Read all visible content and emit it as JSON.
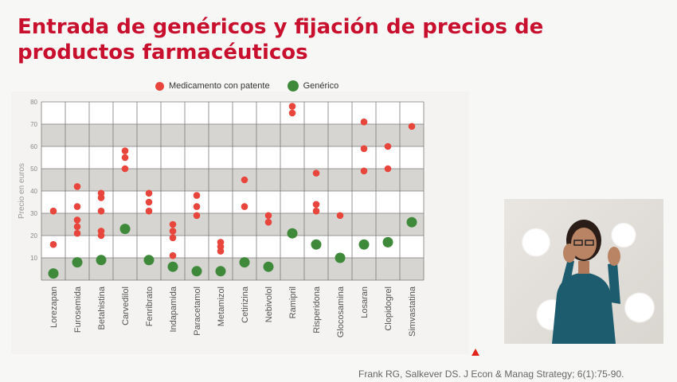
{
  "title": "Entrada de genéricos y fijación de precios de productos farmacéuticos",
  "citation": "Frank RG, Salkever DS. J Econ & Manag Strategy; 6(1):75-90.",
  "colors": {
    "brand": "#c8102e",
    "patent": "#e8453c",
    "generic": "#3f8a3a"
  },
  "chart_data": {
    "type": "scatter",
    "ylabel": "Precio en euros",
    "ylim": [
      0,
      80
    ],
    "yticks": [
      10,
      20,
      30,
      40,
      50,
      60,
      70,
      80
    ],
    "categories": [
      "Lorezapan",
      "Furosemida",
      "Betahistina",
      "Carvedilol",
      "Fenribrato",
      "Indapamida",
      "Paracetamol",
      "Metamizol",
      "Cetirizina",
      "Nebivolol",
      "Ramipril",
      "Risperidona",
      "Glocosamina",
      "Losaran",
      "Clopidogrel",
      "Simvastatina"
    ],
    "series": [
      {
        "name": "Medicamento con patente",
        "points": [
          [
            0,
            31
          ],
          [
            0,
            16
          ],
          [
            1,
            42
          ],
          [
            1,
            33
          ],
          [
            1,
            27
          ],
          [
            1,
            24
          ],
          [
            1,
            21
          ],
          [
            2,
            39
          ],
          [
            2,
            37
          ],
          [
            2,
            31
          ],
          [
            2,
            22
          ],
          [
            2,
            20
          ],
          [
            3,
            58
          ],
          [
            3,
            55
          ],
          [
            3,
            50
          ],
          [
            4,
            39
          ],
          [
            4,
            35
          ],
          [
            4,
            31
          ],
          [
            5,
            25
          ],
          [
            5,
            22
          ],
          [
            5,
            19
          ],
          [
            5,
            11
          ],
          [
            6,
            38
          ],
          [
            6,
            33
          ],
          [
            6,
            29
          ],
          [
            7,
            17
          ],
          [
            7,
            15
          ],
          [
            7,
            13
          ],
          [
            8,
            45
          ],
          [
            8,
            33
          ],
          [
            9,
            29
          ],
          [
            9,
            26
          ],
          [
            10,
            78
          ],
          [
            10,
            75
          ],
          [
            11,
            48
          ],
          [
            11,
            34
          ],
          [
            11,
            31
          ],
          [
            12,
            29
          ],
          [
            13,
            71
          ],
          [
            13,
            59
          ],
          [
            13,
            49
          ],
          [
            14,
            60
          ],
          [
            14,
            50
          ],
          [
            15,
            69
          ]
        ]
      },
      {
        "name": "Genérico",
        "points": [
          [
            0,
            3
          ],
          [
            1,
            8
          ],
          [
            2,
            9
          ],
          [
            3,
            23
          ],
          [
            4,
            9
          ],
          [
            5,
            6
          ],
          [
            6,
            4
          ],
          [
            7,
            4
          ],
          [
            8,
            8
          ],
          [
            9,
            6
          ],
          [
            10,
            21
          ],
          [
            11,
            16
          ],
          [
            12,
            10
          ],
          [
            13,
            16
          ],
          [
            14,
            17
          ],
          [
            15,
            26
          ]
        ]
      }
    ]
  }
}
